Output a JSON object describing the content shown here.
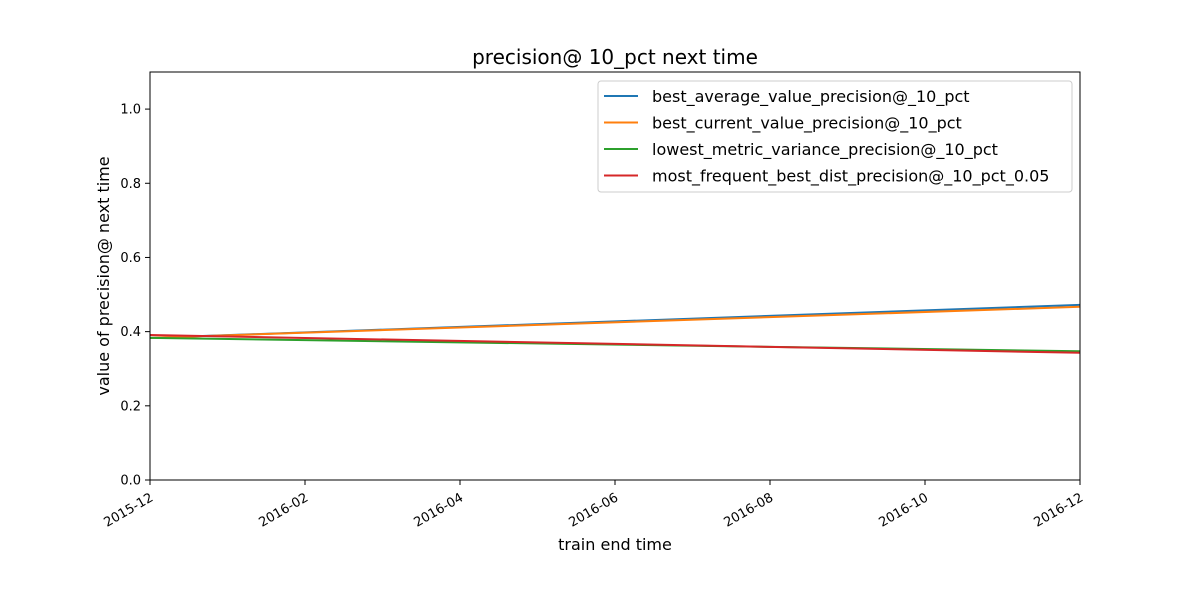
{
  "chart_data": {
    "type": "line",
    "title": "precision@ 10_pct next time",
    "xlabel": "train end time",
    "ylabel": "value of precision@ next time",
    "xlim": [
      "2015-12",
      "2016-12"
    ],
    "ylim": [
      0.0,
      1.1
    ],
    "x_ticks": [
      "2015-12",
      "2016-02",
      "2016-04",
      "2016-06",
      "2016-08",
      "2016-10",
      "2016-12"
    ],
    "y_ticks": [
      "0.0",
      "0.2",
      "0.4",
      "0.6",
      "0.8",
      "1.0"
    ],
    "x": [
      "2015-12",
      "2016-12"
    ],
    "legend_position": "top-right",
    "grid": false,
    "series": [
      {
        "name": "best_average_value_precision@_10_pct",
        "color": "#1f77b4",
        "values": [
          0.383,
          0.472
        ]
      },
      {
        "name": "best_current_value_precision@_10_pct",
        "color": "#ff7f0e",
        "values": [
          0.383,
          0.467
        ]
      },
      {
        "name": "lowest_metric_variance_precision@_10_pct",
        "color": "#2ca02c",
        "values": [
          0.383,
          0.347
        ]
      },
      {
        "name": "most_frequent_best_dist_precision@_10_pct_0.05",
        "color": "#d62728",
        "values": [
          0.391,
          0.343
        ]
      }
    ]
  }
}
